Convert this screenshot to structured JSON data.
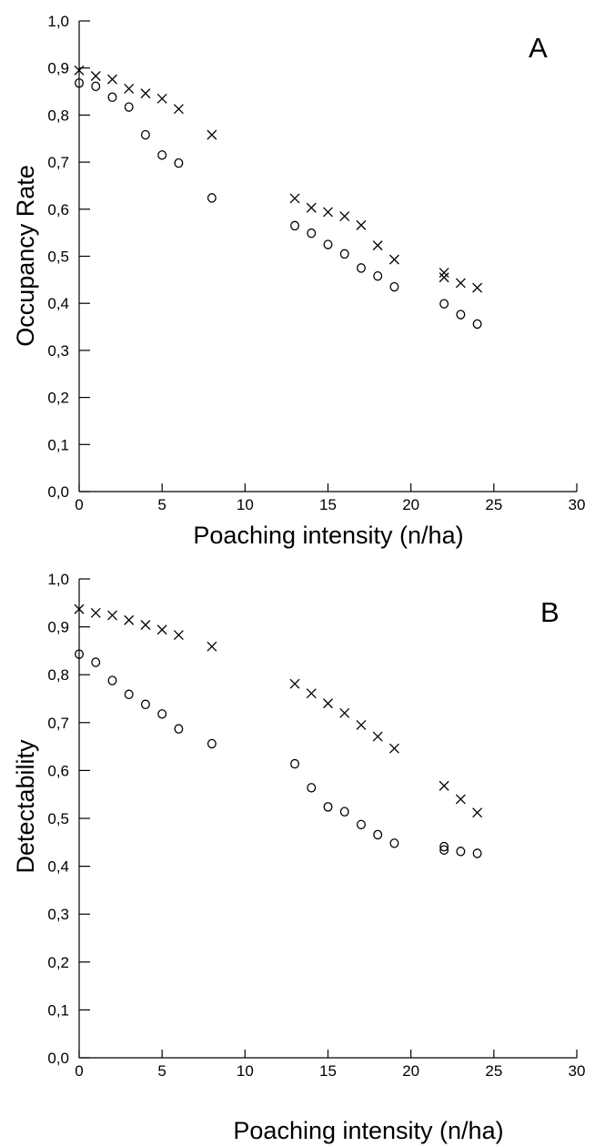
{
  "chart_data": [
    {
      "type": "scatter",
      "panel_label": "A",
      "xlabel": "Poaching intensity (n/ha)",
      "ylabel": "Occupancy Rate",
      "xlim": [
        0,
        30
      ],
      "ylim": [
        0,
        1
      ],
      "xticks": [
        "0",
        "5",
        "10",
        "15",
        "20",
        "25",
        "30"
      ],
      "yticks": [
        "0,0",
        "0,1",
        "0,2",
        "0,3",
        "0,4",
        "0,5",
        "0,6",
        "0,7",
        "0,8",
        "0,9",
        "1,0"
      ],
      "grid": false,
      "series": [
        {
          "marker": "x",
          "x": [
            0,
            1,
            2,
            3,
            4,
            5,
            6,
            8,
            13,
            14,
            15,
            16,
            17,
            18,
            19,
            22,
            22,
            23,
            24
          ],
          "y": [
            0.895,
            0.883,
            0.876,
            0.856,
            0.846,
            0.835,
            0.813,
            0.758,
            0.623,
            0.603,
            0.594,
            0.585,
            0.566,
            0.523,
            0.493,
            0.465,
            0.455,
            0.443,
            0.433
          ]
        },
        {
          "marker": "o",
          "x": [
            0,
            1,
            2,
            3,
            4,
            5,
            6,
            8,
            13,
            14,
            15,
            16,
            17,
            18,
            19,
            22,
            23,
            24
          ],
          "y": [
            0.868,
            0.861,
            0.838,
            0.817,
            0.758,
            0.715,
            0.698,
            0.624,
            0.565,
            0.549,
            0.525,
            0.505,
            0.475,
            0.458,
            0.435,
            0.399,
            0.376,
            0.356
          ]
        }
      ]
    },
    {
      "type": "scatter",
      "panel_label": "B",
      "xlabel": "Poaching intensity (n/ha)",
      "ylabel": "Detectability",
      "xlim": [
        0,
        30
      ],
      "ylim": [
        0,
        1
      ],
      "xticks": [
        "0",
        "5",
        "10",
        "15",
        "20",
        "25",
        "30"
      ],
      "yticks": [
        "0,0",
        "0,1",
        "0,2",
        "0,3",
        "0,4",
        "0,5",
        "0,6",
        "0,7",
        "0,8",
        "0,9",
        "1,0"
      ],
      "grid": false,
      "series": [
        {
          "marker": "x",
          "x": [
            0,
            1,
            2,
            3,
            4,
            5,
            6,
            8,
            13,
            14,
            15,
            16,
            17,
            18,
            19,
            22,
            23,
            24
          ],
          "y": [
            0.937,
            0.929,
            0.924,
            0.914,
            0.904,
            0.894,
            0.883,
            0.859,
            0.781,
            0.761,
            0.74,
            0.72,
            0.695,
            0.671,
            0.646,
            0.568,
            0.54,
            0.512
          ]
        },
        {
          "marker": "o",
          "x": [
            0,
            1,
            2,
            3,
            4,
            5,
            6,
            8,
            13,
            14,
            15,
            16,
            17,
            18,
            19,
            22,
            22,
            23,
            24
          ],
          "y": [
            0.843,
            0.826,
            0.788,
            0.759,
            0.738,
            0.718,
            0.687,
            0.656,
            0.614,
            0.564,
            0.524,
            0.514,
            0.487,
            0.466,
            0.448,
            0.441,
            0.434,
            0.431,
            0.427
          ]
        }
      ]
    }
  ]
}
